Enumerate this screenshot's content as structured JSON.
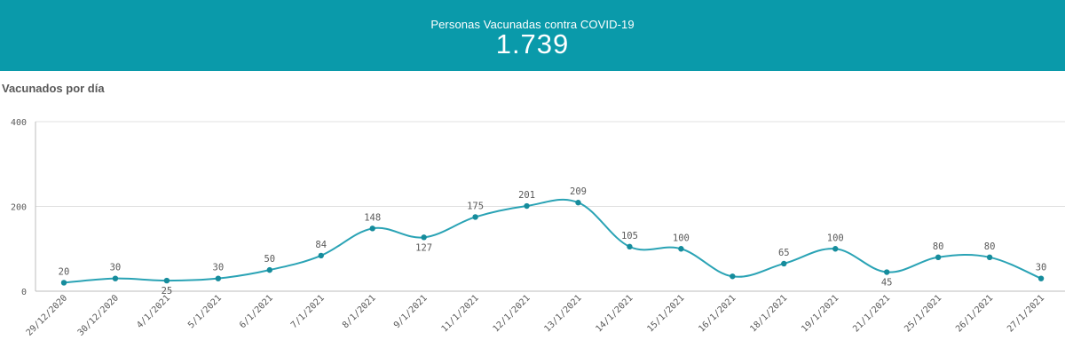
{
  "kpi": {
    "label": "Personas Vacunadas contra COVID-19",
    "value": "1.739",
    "background": "#0a9aaa"
  },
  "chart_title": "Vacunados por día",
  "chart_data": {
    "type": "line",
    "title": "Vacunados por día",
    "xlabel": "",
    "ylabel": "",
    "ylim": [
      0,
      400
    ],
    "yticks": [
      0,
      200,
      400
    ],
    "grid": true,
    "line_color": "#2aa3b5",
    "categories": [
      "29/12/2020",
      "30/12/2020",
      "4/1/2021",
      "5/1/2021",
      "6/1/2021",
      "7/1/2021",
      "8/1/2021",
      "9/1/2021",
      "11/1/2021",
      "12/1/2021",
      "13/1/2021",
      "14/1/2021",
      "15/1/2021",
      "16/1/2021",
      "18/1/2021",
      "19/1/2021",
      "21/1/2021",
      "25/1/2021",
      "26/1/2021",
      "27/1/2021"
    ],
    "values": [
      20,
      30,
      25,
      30,
      50,
      84,
      148,
      127,
      175,
      201,
      209,
      105,
      100,
      35,
      65,
      100,
      45,
      80,
      80,
      30
    ],
    "data_labels": [
      "20",
      "30",
      "25",
      "30",
      "50",
      "84",
      "148",
      "127",
      "175",
      "201",
      "209",
      "105",
      "100",
      "",
      "65",
      "100",
      "45",
      "80",
      "80",
      "30"
    ]
  }
}
